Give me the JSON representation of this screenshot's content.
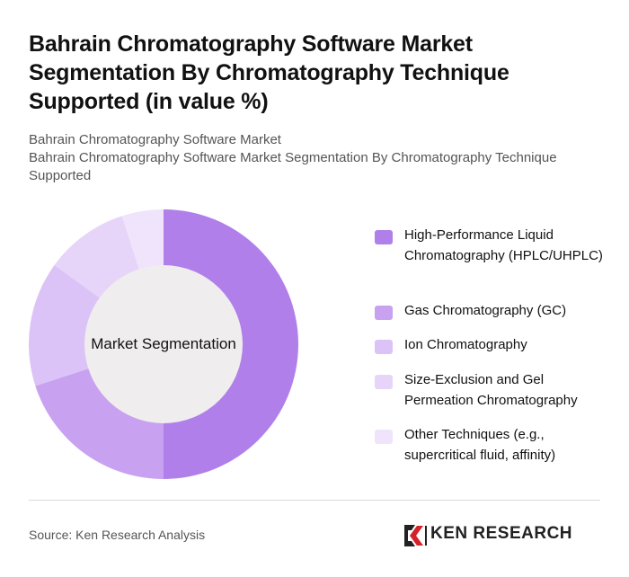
{
  "header": {
    "title": "Bahrain Chromatography Software Market Segmentation By Chromatography Technique Supported (in value %)",
    "subtitle_line1": "Bahrain Chromatography Software Market",
    "subtitle_line2": "Bahrain Chromatography Software Market Segmentation By Chromatography Technique Supported"
  },
  "chart_data": {
    "type": "pie",
    "variant": "donut",
    "center_label": "Market Segmentation",
    "legend_position": "right",
    "categories": [
      "High-Performance Liquid Chromatography (HPLC/UHPLC)",
      "Gas Chromatography (GC)",
      "Ion Chromatography",
      "Size-Exclusion and Gel Permeation Chromatography",
      "Other Techniques (e.g., supercritical fluid, affinity)"
    ],
    "values": [
      50,
      20,
      15,
      10,
      5
    ],
    "colors": [
      "#b07fea",
      "#c8a1f1",
      "#dcc3f7",
      "#e6d5f8",
      "#efe4fb"
    ]
  },
  "footer": {
    "source": "Source: Ken Research Analysis",
    "brand": "KEN RESEARCH"
  },
  "colors": {
    "center_fill": "#efedee",
    "brand_red": "#d3222a"
  }
}
